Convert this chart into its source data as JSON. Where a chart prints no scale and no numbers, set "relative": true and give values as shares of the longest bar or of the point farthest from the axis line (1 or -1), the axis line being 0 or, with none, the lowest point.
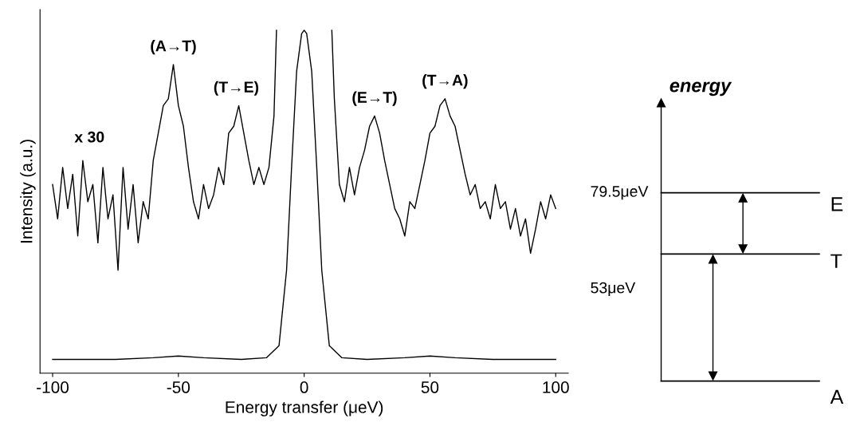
{
  "chart_data": [
    {
      "type": "line",
      "relative": true,
      "xlabel": "Energy transfer (μeV)",
      "ylabel": "Intensity (a.u.)",
      "xlim": [
        -105,
        105
      ],
      "xticks": [
        -100,
        -50,
        0,
        50,
        100
      ],
      "grid": false,
      "legend": false,
      "marker": "none",
      "line_style": "solid",
      "series": [
        {
          "color": "#000000",
          "x": [
            -100,
            -98,
            -96,
            -94,
            -92,
            -90,
            -88,
            -86,
            -84,
            -82,
            -80,
            -78,
            -76,
            -74,
            -72,
            -70,
            -68,
            -66,
            -64,
            -62,
            -60,
            -58,
            -56,
            -54,
            -52,
            -50,
            -48,
            -46,
            -44,
            -42,
            -40,
            -38,
            -36,
            -34,
            -32,
            -30,
            -28,
            -26,
            -24,
            -22,
            -20,
            -18,
            -16,
            -14,
            -12,
            -11,
            0,
            11,
            12,
            14,
            16,
            18,
            20,
            22,
            24,
            26,
            28,
            30,
            32,
            34,
            36,
            38,
            40,
            42,
            44,
            46,
            48,
            50,
            52,
            54,
            56,
            58,
            60,
            62,
            64,
            66,
            68,
            70,
            72,
            74,
            76,
            78,
            80,
            82,
            84,
            86,
            88,
            90,
            92,
            94,
            96,
            98,
            100
          ],
          "values": [
            0.55,
            0.45,
            0.6,
            0.48,
            0.58,
            0.4,
            0.62,
            0.5,
            0.55,
            0.38,
            0.6,
            0.45,
            0.52,
            0.3,
            0.6,
            0.42,
            0.55,
            0.38,
            0.5,
            0.45,
            0.62,
            0.7,
            0.78,
            0.8,
            0.9,
            0.78,
            0.72,
            0.6,
            0.5,
            0.45,
            0.55,
            0.48,
            0.52,
            0.6,
            0.55,
            0.7,
            0.72,
            0.78,
            0.7,
            0.62,
            0.55,
            0.6,
            0.55,
            0.6,
            0.75,
            1.0,
            null,
            1.0,
            0.8,
            0.55,
            0.5,
            0.6,
            0.52,
            0.6,
            0.65,
            0.72,
            0.75,
            0.7,
            0.62,
            0.55,
            0.48,
            0.45,
            0.4,
            0.5,
            0.48,
            0.55,
            0.62,
            0.7,
            0.72,
            0.78,
            0.8,
            0.75,
            0.72,
            0.65,
            0.58,
            0.52,
            0.55,
            0.48,
            0.5,
            0.45,
            0.55,
            0.48,
            0.5,
            0.42,
            0.48,
            0.4,
            0.45,
            0.35,
            0.42,
            0.5,
            0.45,
            0.52,
            0.48
          ]
        },
        {
          "color": "#000000",
          "x": [
            -100,
            -75,
            -60,
            -50,
            -40,
            -25,
            -15,
            -10,
            -7,
            -5,
            -3,
            -1,
            0,
            1,
            3,
            5,
            7,
            10,
            15,
            25,
            40,
            50,
            60,
            75,
            100
          ],
          "values": [
            0.04,
            0.04,
            0.045,
            0.05,
            0.045,
            0.04,
            0.045,
            0.08,
            0.3,
            0.6,
            0.88,
            0.99,
            1.0,
            0.99,
            0.88,
            0.6,
            0.3,
            0.08,
            0.045,
            0.04,
            0.045,
            0.05,
            0.045,
            0.04,
            0.04
          ]
        }
      ],
      "annotations": [
        {
          "text": "(A→T)",
          "x": -52,
          "y": 0.9
        },
        {
          "text": "(T→E)",
          "x": -27,
          "y": 0.78
        },
        {
          "text": "(E→T)",
          "x": 28,
          "y": 0.75
        },
        {
          "text": "(T→A)",
          "x": 56,
          "y": 0.8
        },
        "x 30"
      ]
    },
    {
      "type": "other",
      "title": "energy",
      "annotations": [
        "79.5μeV",
        "E",
        "T",
        "53μeV",
        "A"
      ]
    }
  ]
}
